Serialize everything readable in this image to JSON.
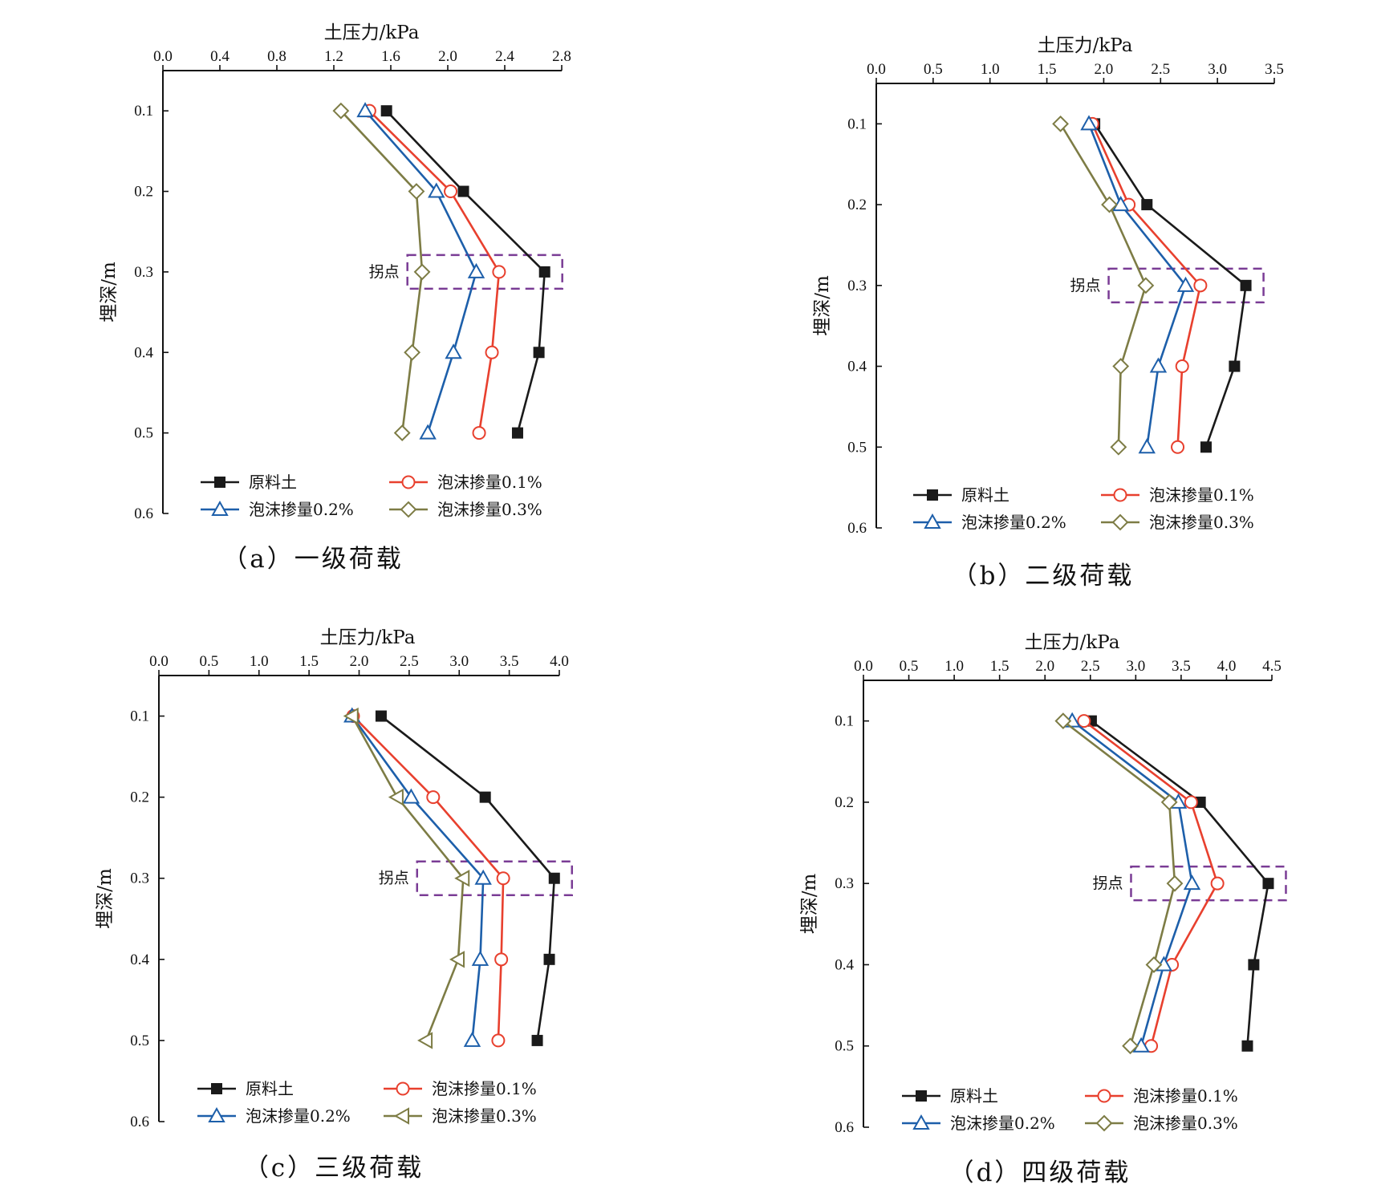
{
  "colors": {
    "原料土": "#1a1a1a",
    "泡沫掺量0.1%": "#e8402e",
    "泡沫掺量0.2%": "#1d5faa",
    "泡沫掺量0.3%": "#7d7c45",
    "annotation_box": "#7a3c95"
  },
  "chart_data": [
    {
      "type": "line",
      "caption": "（a）一级荷载",
      "xlabel": "土压力/kPa",
      "ylabel": "埋深/m",
      "xlim": [
        0,
        2.8
      ],
      "ylim": [
        0.6,
        0.05
      ],
      "xticks": [
        "0.0",
        "0.4",
        "0.8",
        "1.2",
        "1.6",
        "2.0",
        "2.4",
        "2.8"
      ],
      "yticks": [
        "0.1",
        "0.2",
        "0.3",
        "0.4",
        "0.5",
        "0.6"
      ],
      "y": [
        0.1,
        0.2,
        0.3,
        0.4,
        0.5
      ],
      "annotation": {
        "text": "拐点",
        "depth": 0.3
      },
      "series": [
        {
          "name": "原料土",
          "marker": "square",
          "values": [
            1.57,
            2.11,
            2.68,
            2.64,
            2.49
          ]
        },
        {
          "name": "泡沫掺量0.1%",
          "marker": "circle",
          "values": [
            1.45,
            2.02,
            2.36,
            2.31,
            2.22
          ]
        },
        {
          "name": "泡沫掺量0.2%",
          "marker": "triangle-up",
          "values": [
            1.42,
            1.92,
            2.2,
            2.04,
            1.86
          ]
        },
        {
          "name": "泡沫掺量0.3%",
          "marker": "diamond",
          "values": [
            1.25,
            1.78,
            1.82,
            1.75,
            1.68
          ]
        }
      ]
    },
    {
      "type": "line",
      "caption": "（b）二级荷载",
      "xlabel": "土压力/kPa",
      "ylabel": "埋深/m",
      "xlim": [
        0,
        3.5
      ],
      "ylim": [
        0.6,
        0.05
      ],
      "xticks": [
        "0.0",
        "0.5",
        "1.0",
        "1.5",
        "2.0",
        "2.5",
        "3.0",
        "3.5"
      ],
      "yticks": [
        "0.1",
        "0.2",
        "0.3",
        "0.4",
        "0.5",
        "0.6"
      ],
      "y": [
        0.1,
        0.2,
        0.3,
        0.4,
        0.5
      ],
      "annotation": {
        "text": "拐点",
        "depth": 0.3
      },
      "series": [
        {
          "name": "原料土",
          "marker": "square",
          "values": [
            1.92,
            2.38,
            3.25,
            3.15,
            2.9
          ]
        },
        {
          "name": "泡沫掺量0.1%",
          "marker": "circle",
          "values": [
            1.9,
            2.22,
            2.85,
            2.69,
            2.65
          ]
        },
        {
          "name": "泡沫掺量0.2%",
          "marker": "triangle-up",
          "values": [
            1.87,
            2.15,
            2.72,
            2.48,
            2.38
          ]
        },
        {
          "name": "泡沫掺量0.3%",
          "marker": "diamond",
          "values": [
            1.62,
            2.05,
            2.37,
            2.15,
            2.13
          ]
        }
      ]
    },
    {
      "type": "line",
      "caption": "（c）三级荷载",
      "xlabel": "土压力/kPa",
      "ylabel": "埋深/m",
      "xlim": [
        0,
        4.0
      ],
      "ylim": [
        0.6,
        0.05
      ],
      "xticks": [
        "0.0",
        "0.5",
        "1.0",
        "1.5",
        "2.0",
        "2.5",
        "3.0",
        "3.5",
        "4.0"
      ],
      "yticks": [
        "0.1",
        "0.2",
        "0.3",
        "0.4",
        "0.5",
        "0.6"
      ],
      "y": [
        0.1,
        0.2,
        0.3,
        0.4,
        0.5
      ],
      "annotation": {
        "text": "拐点",
        "depth": 0.3
      },
      "series": [
        {
          "name": "原料土",
          "marker": "square",
          "values": [
            2.22,
            3.26,
            3.95,
            3.9,
            3.78
          ]
        },
        {
          "name": "泡沫掺量0.1%",
          "marker": "circle",
          "values": [
            1.94,
            2.74,
            3.44,
            3.42,
            3.39
          ]
        },
        {
          "name": "泡沫掺量0.2%",
          "marker": "triangle-up",
          "values": [
            1.93,
            2.52,
            3.24,
            3.21,
            3.13
          ]
        },
        {
          "name": "泡沫掺量0.3%",
          "marker": "triangle-left",
          "values": [
            1.93,
            2.38,
            3.04,
            2.99,
            2.67
          ]
        }
      ]
    },
    {
      "type": "line",
      "caption": "（d）四级荷载",
      "xlabel": "土压力/kPa",
      "ylabel": "埋深/m",
      "xlim": [
        0,
        4.5
      ],
      "ylim": [
        0.6,
        0.05
      ],
      "xticks": [
        "0.0",
        "0.5",
        "1.0",
        "1.5",
        "2.0",
        "2.5",
        "3.0",
        "3.5",
        "4.0",
        "4.5"
      ],
      "yticks": [
        "0.1",
        "0.2",
        "0.3",
        "0.4",
        "0.5",
        "0.6"
      ],
      "y": [
        0.1,
        0.2,
        0.3,
        0.4,
        0.5
      ],
      "annotation": {
        "text": "拐点",
        "depth": 0.3
      },
      "series": [
        {
          "name": "原料土",
          "marker": "square",
          "values": [
            2.51,
            3.71,
            4.46,
            4.3,
            4.23
          ]
        },
        {
          "name": "泡沫掺量0.1%",
          "marker": "circle",
          "values": [
            2.43,
            3.61,
            3.9,
            3.4,
            3.17
          ]
        },
        {
          "name": "泡沫掺量0.2%",
          "marker": "triangle-up",
          "values": [
            2.3,
            3.47,
            3.62,
            3.31,
            3.06
          ]
        },
        {
          "name": "泡沫掺量0.3%",
          "marker": "diamond",
          "values": [
            2.2,
            3.37,
            3.43,
            3.2,
            2.94
          ]
        }
      ]
    }
  ]
}
